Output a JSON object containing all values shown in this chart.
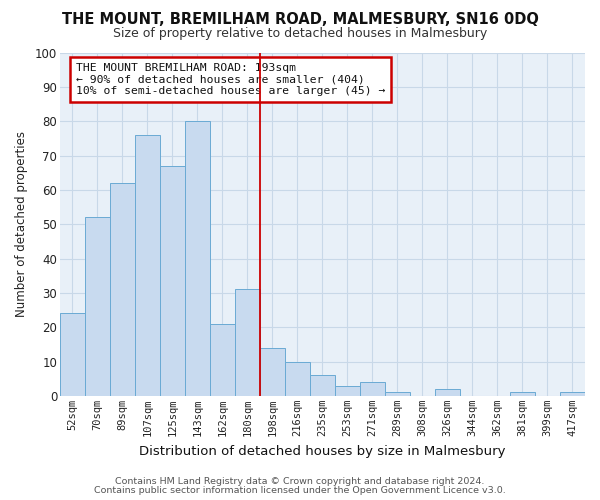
{
  "title": "THE MOUNT, BREMILHAM ROAD, MALMESBURY, SN16 0DQ",
  "subtitle": "Size of property relative to detached houses in Malmesbury",
  "xlabel": "Distribution of detached houses by size in Malmesbury",
  "ylabel": "Number of detached properties",
  "footer_line1": "Contains HM Land Registry data © Crown copyright and database right 2024.",
  "footer_line2": "Contains public sector information licensed under the Open Government Licence v3.0.",
  "bin_labels": [
    "52sqm",
    "70sqm",
    "89sqm",
    "107sqm",
    "125sqm",
    "143sqm",
    "162sqm",
    "180sqm",
    "198sqm",
    "216sqm",
    "235sqm",
    "253sqm",
    "271sqm",
    "289sqm",
    "308sqm",
    "326sqm",
    "344sqm",
    "362sqm",
    "381sqm",
    "399sqm",
    "417sqm"
  ],
  "bar_heights": [
    24,
    52,
    62,
    76,
    67,
    80,
    21,
    31,
    14,
    10,
    6,
    3,
    4,
    1,
    0,
    2,
    0,
    0,
    1,
    0,
    1
  ],
  "bar_color": "#c8daef",
  "bar_edge_color": "#6aaad4",
  "vline_x": 7.5,
  "vline_color": "#cc0000",
  "annotation_title": "THE MOUNT BREMILHAM ROAD: 193sqm",
  "annotation_line1": "← 90% of detached houses are smaller (404)",
  "annotation_line2": "10% of semi-detached houses are larger (45) →",
  "annotation_box_edge_color": "#cc0000",
  "grid_color": "#c8d8e8",
  "axes_bg_color": "#e8f0f8",
  "figure_bg_color": "#ffffff",
  "ylim": [
    0,
    100
  ],
  "yticks": [
    0,
    10,
    20,
    30,
    40,
    50,
    60,
    70,
    80,
    90,
    100
  ]
}
